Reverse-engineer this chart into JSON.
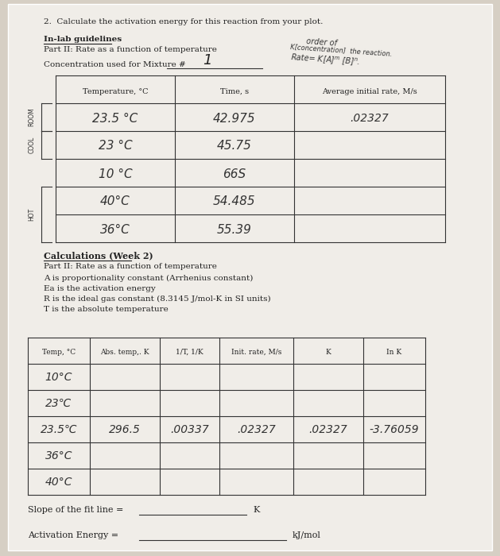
{
  "bg_color": "#d6cfc4",
  "paper_color": "#f0ede8",
  "title_q": "2.  Calculate the activation energy for this reaction from your plot.",
  "section1_header": "In-lab guidelines",
  "section1_sub": "Part II: Rate as a function of temperature",
  "conc_label": "Concentration used for Mixture #",
  "conc_value": "1",
  "handwritten_note1": "order of",
  "handwritten_note2": "K[concentration]  the reaction.",
  "handwritten_note3": "Rate= K[A]  [B] .",
  "table1_headers": [
    "Temperature, °C",
    "Time, s",
    "Average initial rate, M/s"
  ],
  "table1_rows": [
    [
      "23.5 °C",
      "42.975",
      ".02327"
    ],
    [
      "23 °C",
      "45.75",
      ""
    ],
    [
      "10 °C",
      "66S",
      ""
    ],
    [
      "40°C",
      "54.485",
      ""
    ],
    [
      "36°C",
      "55.39",
      ""
    ]
  ],
  "section2_header": "Calculations (Week 2)",
  "section2_sub": "Part II: Rate as a function of temperature",
  "bullet1": "A is proportionality constant (Arrhenius constant)",
  "bullet2": "Ea is the activation energy",
  "bullet3": "R is the ideal gas constant (8.3145 J/mol-K in SI units)",
  "bullet4": "T is the absolute temperature",
  "table2_headers": [
    "Temp, °C",
    "Abs. temp,. K",
    "1/T, 1/K",
    "Init. rate, M/s",
    "K",
    "In K"
  ],
  "table2_rows": [
    [
      "10°C",
      "",
      "",
      "",
      "",
      ""
    ],
    [
      "23℃",
      "",
      "",
      "",
      "",
      ""
    ],
    [
      "23.5℃",
      "296.5",
      ".00337",
      ".02327",
      ".02327",
      "-3.76059"
    ],
    [
      "36°C",
      "",
      "",
      "",
      "",
      ""
    ],
    [
      "40°C",
      "",
      "",
      "",
      "",
      ""
    ]
  ],
  "slope_label": "Slope of the fit line =",
  "slope_unit": "K",
  "activation_label": "Activation Energy =",
  "activation_unit": "kJ/mol"
}
